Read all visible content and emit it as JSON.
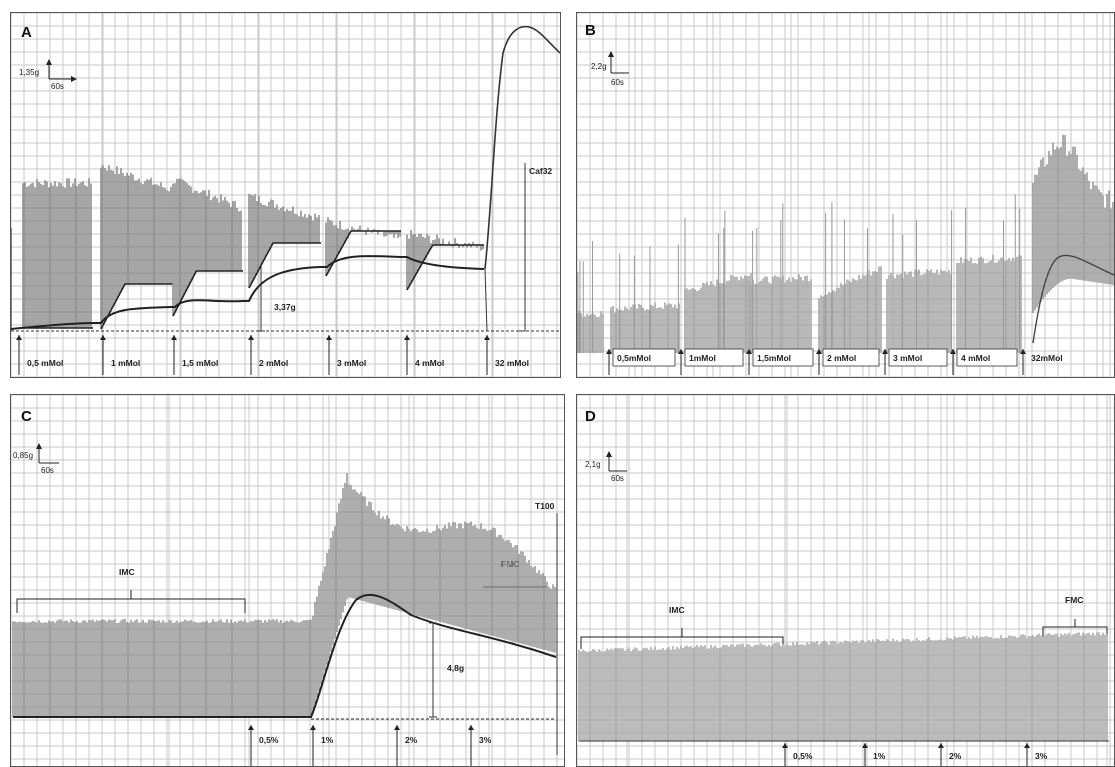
{
  "chart_data": [
    {
      "type": "line",
      "panel": "A",
      "scale": {
        "amplitude": "1,35g",
        "time": "60s"
      },
      "baseline_annotation": "3,37g",
      "end_annotation": "Caf32",
      "additions": [
        "0,5 mMol",
        "1 mMol",
        "1,5 mMol",
        "2 mMol",
        "3 mMol",
        "4 mMol",
        "32  mMol"
      ]
    },
    {
      "type": "line",
      "panel": "B",
      "scale": {
        "amplitude": "2,2g",
        "time": "60s"
      },
      "additions": [
        "0,5mMol",
        "1mMol",
        "1,5mMol",
        "2 mMol",
        "3 mMol",
        "4 mMol",
        "32mMol"
      ]
    },
    {
      "type": "line",
      "panel": "C",
      "scale": {
        "amplitude": "0,85g",
        "time": "60s"
      },
      "period_labels": [
        "IMC",
        "FMC"
      ],
      "peak_annotation": "4,8g",
      "end_annotation": "T100",
      "additions": [
        "0,5%",
        "1%",
        "2%",
        "3%"
      ]
    },
    {
      "type": "line",
      "panel": "D",
      "scale": {
        "amplitude": "2,1g",
        "time": "60s"
      },
      "period_labels": [
        "IMC",
        "FMC"
      ],
      "additions": [
        "0,5%",
        "1%",
        "2%",
        "3%"
      ]
    }
  ]
}
